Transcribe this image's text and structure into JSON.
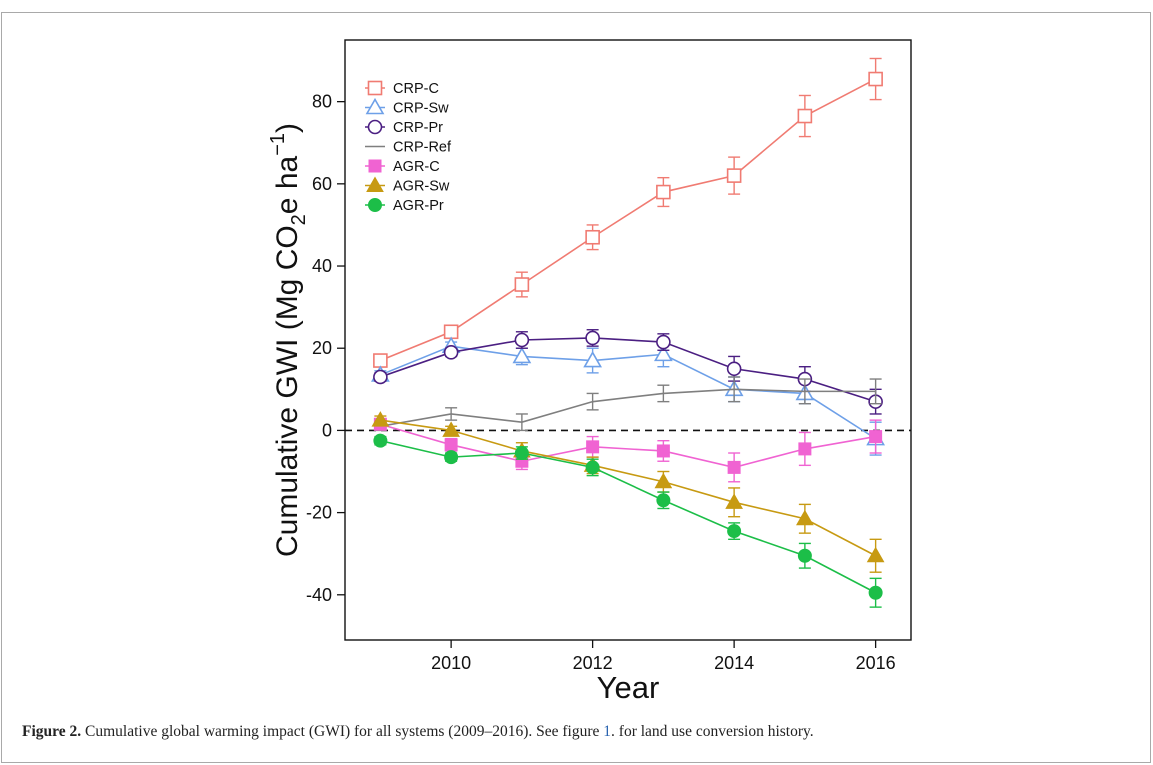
{
  "caption": {
    "label": "Figure 2.",
    "text_before_ref": " Cumulative global warming impact (GWI) for all systems (2009–2016). See figure ",
    "ref": "1",
    "text_after_ref": ". for land use conversion history."
  },
  "chart_data": {
    "type": "line",
    "title": "",
    "xlabel": "Year",
    "ylabel": {
      "prefix": "Cumulative GWI (Mg CO",
      "sub": "2",
      "mid": "e ha",
      "sup": "−1",
      "suffix": ")"
    },
    "xlim": [
      2008.5,
      2016.5
    ],
    "ylim": [
      -51,
      95
    ],
    "xticks": [
      2010,
      2012,
      2014,
      2016
    ],
    "yticks": [
      -40,
      -20,
      0,
      20,
      40,
      60,
      80
    ],
    "reference_line": {
      "y": 0,
      "style": "dashed"
    },
    "grid": false,
    "legend_position": "top-left",
    "x": [
      2009,
      2010,
      2011,
      2012,
      2013,
      2014,
      2015,
      2016
    ],
    "series": [
      {
        "name": "CRP-C",
        "color": "#f07b72",
        "marker": "square-open",
        "values": [
          17,
          24,
          35.5,
          47,
          58,
          62,
          76.5,
          85.5
        ],
        "errors": [
          1.5,
          1.5,
          3,
          3,
          3.5,
          4.5,
          5,
          5
        ]
      },
      {
        "name": "CRP-Sw",
        "color": "#6ea0e8",
        "marker": "triangle-open",
        "values": [
          13.5,
          20.5,
          18,
          17,
          18.5,
          10,
          9,
          -2
        ],
        "errors": [
          1,
          1,
          2,
          3,
          3,
          3,
          2.5,
          4
        ]
      },
      {
        "name": "CRP-Pr",
        "color": "#4b1f82",
        "marker": "circle-open",
        "values": [
          13,
          19,
          22,
          22.5,
          21.5,
          15,
          12.5,
          7
        ],
        "errors": [
          1,
          1,
          2,
          2,
          2,
          3,
          3,
          3
        ]
      },
      {
        "name": "CRP-Ref",
        "color": "#7f7f7f",
        "marker": "none",
        "values": [
          1,
          4,
          2,
          7,
          9,
          10,
          9.5,
          9.5
        ],
        "errors": [
          1,
          1.5,
          2,
          2,
          2,
          3,
          3,
          3
        ]
      },
      {
        "name": "AGR-C",
        "color": "#f063d2",
        "marker": "square-filled",
        "values": [
          1.5,
          -3.5,
          -7.5,
          -4,
          -5,
          -9,
          -4.5,
          -1.5
        ],
        "errors": [
          1,
          1.5,
          2,
          2.5,
          2.5,
          3.5,
          4,
          4
        ]
      },
      {
        "name": "AGR-Sw",
        "color": "#c79a12",
        "marker": "triangle-filled",
        "values": [
          2.5,
          0,
          -5,
          -8.5,
          -12.5,
          -17.5,
          -21.5,
          -30.5
        ],
        "errors": [
          1,
          1,
          2,
          2,
          2.5,
          3.5,
          3.5,
          4
        ]
      },
      {
        "name": "AGR-Pr",
        "color": "#1cbe48",
        "marker": "circle-filled",
        "values": [
          -2.5,
          -6.5,
          -5.5,
          -9,
          -17,
          -24.5,
          -30.5,
          -39.5
        ],
        "errors": [
          1,
          1,
          1.5,
          2,
          2,
          2,
          3,
          3.5
        ]
      }
    ]
  }
}
